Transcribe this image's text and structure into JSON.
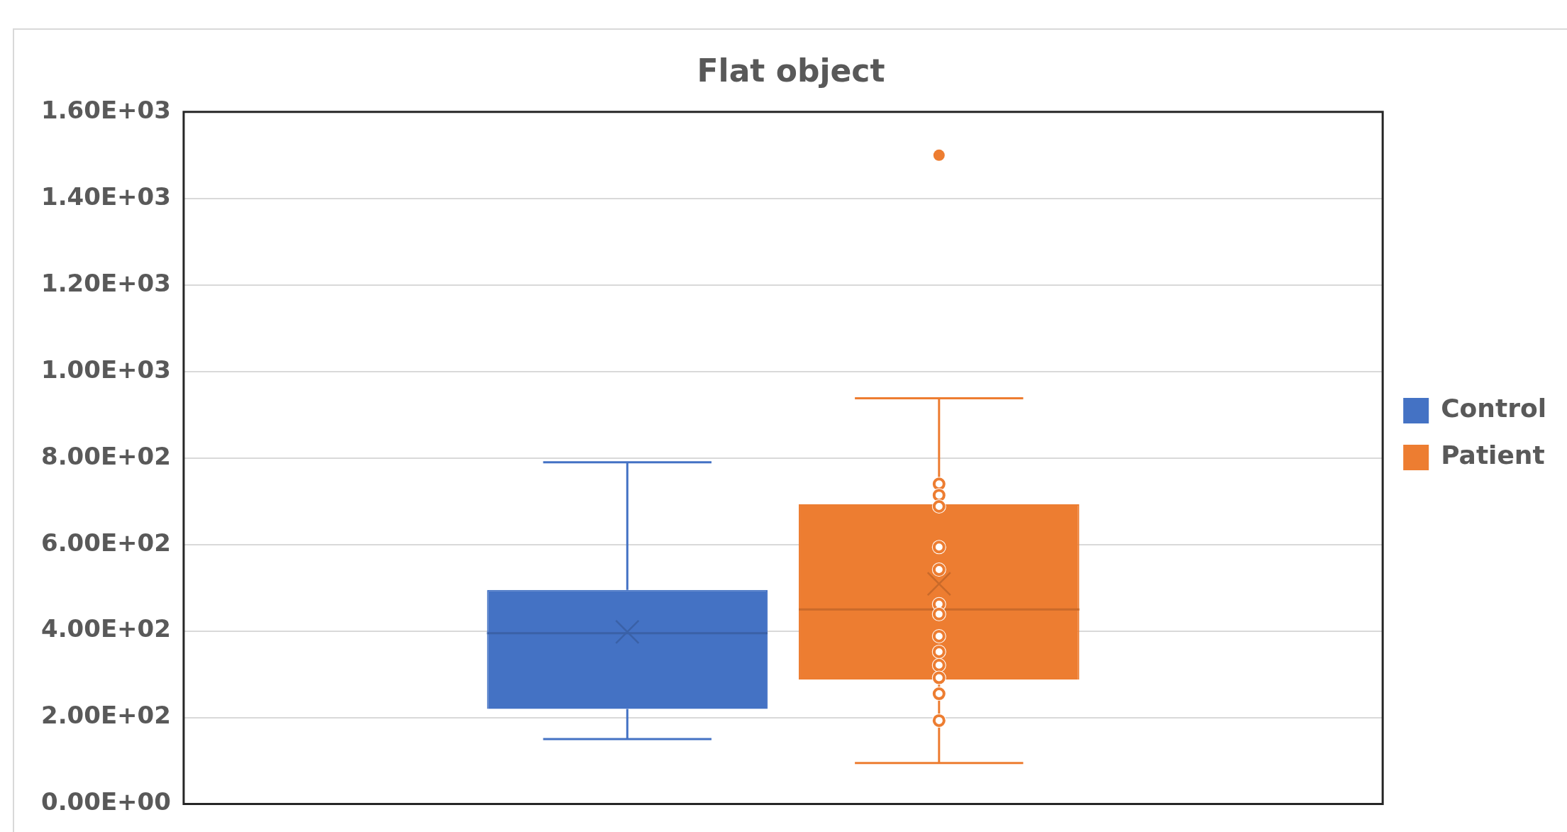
{
  "chart_data": {
    "type": "box",
    "title": "Flat object",
    "categories": [
      null
    ],
    "ylim": [
      0,
      1600
    ],
    "yticks": [
      {
        "value": 0,
        "label": "0.00E+00"
      },
      {
        "value": 200,
        "label": "2.00E+02"
      },
      {
        "value": 400,
        "label": "4.00E+02"
      },
      {
        "value": 600,
        "label": "6.00E+02"
      },
      {
        "value": 800,
        "label": "8.00E+02"
      },
      {
        "value": 1000,
        "label": "1.00E+03"
      },
      {
        "value": 1200,
        "label": "1.20E+03"
      },
      {
        "value": 1400,
        "label": "1.40E+03"
      },
      {
        "value": 1600,
        "label": "1.60E+03"
      }
    ],
    "grid": "y",
    "legend": "right",
    "series": [
      {
        "name": "Control",
        "color": "#4472c4",
        "boxes": [
          {
            "low": 150,
            "q1": 220,
            "median": 395,
            "q3": 495,
            "high": 790,
            "mean": 398
          }
        ]
      },
      {
        "name": "Patient",
        "color": "#ed7d31",
        "boxes": [
          {
            "low": 95,
            "q1": 288,
            "median": 450,
            "q3": 693,
            "high": 938,
            "mean": 509,
            "outliers": [
              1500
            ]
          }
        ]
      },
      {
        "type": "scatter",
        "color": "#ed7d31",
        "x": [
          null,
          null,
          null,
          null,
          null,
          null,
          null,
          null,
          null,
          null,
          null,
          null,
          null
        ],
        "values": [
          740,
          714,
          688,
          594,
          542,
          462,
          439,
          388,
          352,
          321,
          292,
          255,
          193
        ]
      }
    ]
  }
}
